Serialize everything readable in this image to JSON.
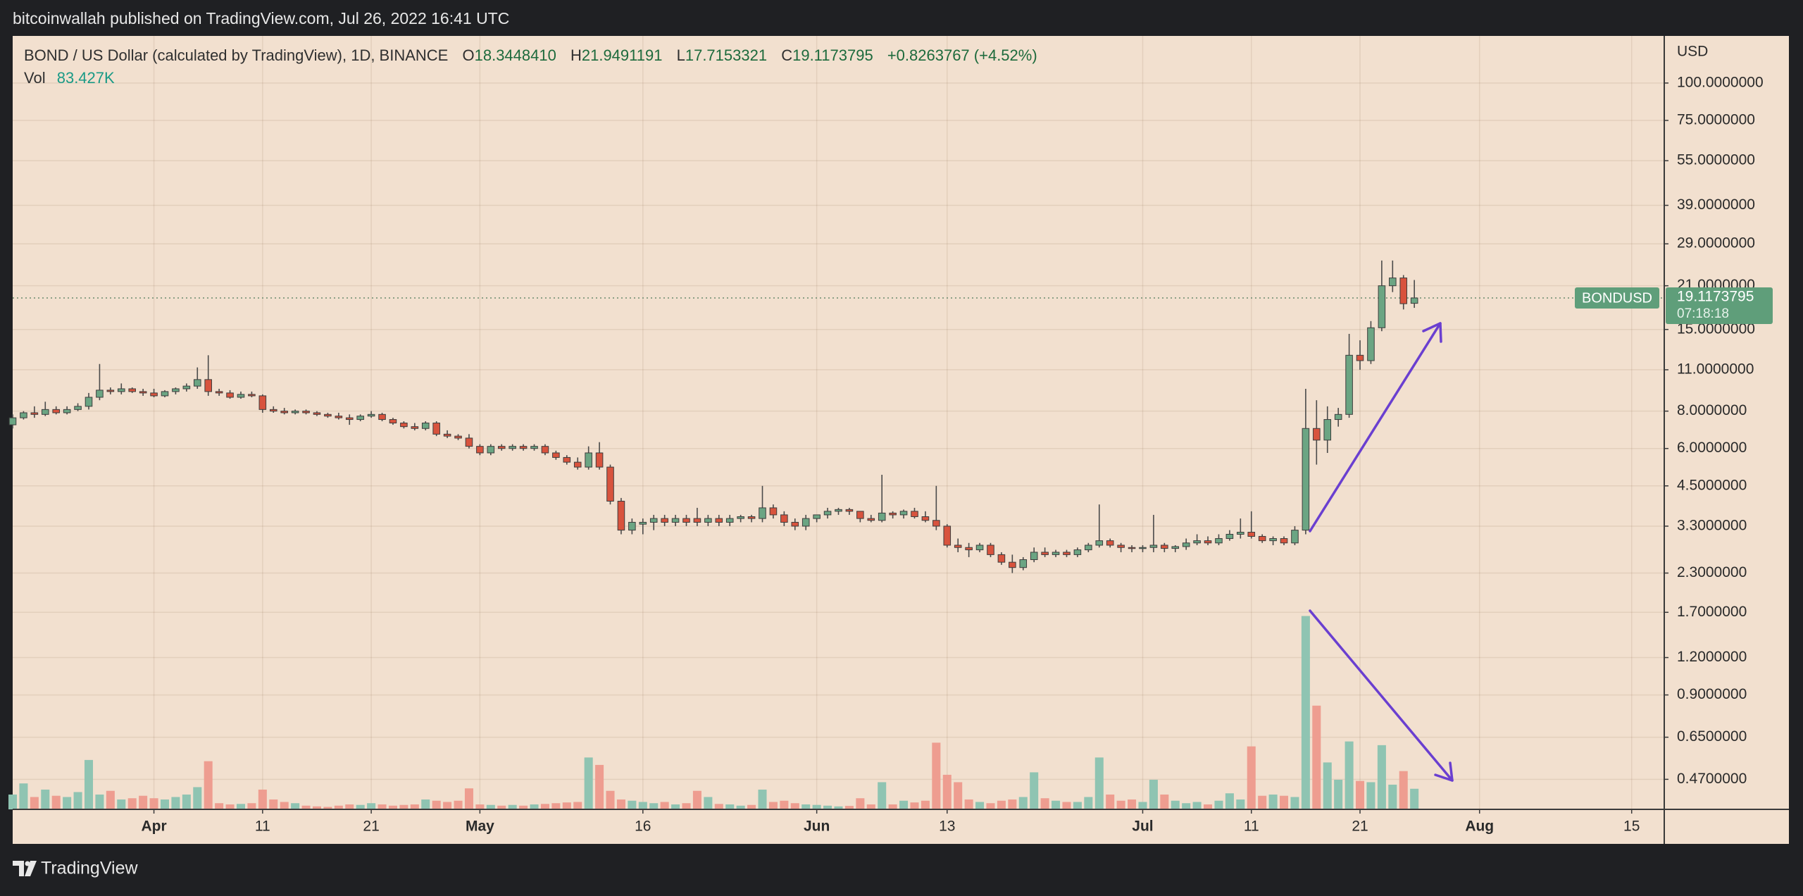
{
  "header": {
    "publisher": "bitcoinwallah published on TradingView.com, Jul 26, 2022 16:41 UTC"
  },
  "footer": {
    "brand": "TradingView"
  },
  "chart_data": {
    "type": "candlestick",
    "title": "BOND / US Dollar (calculated by TradingView), 1D, BINANCE",
    "legend": [
      {
        "label": "O",
        "value": "18.3448410"
      },
      {
        "label": "H",
        "value": "21.9491191"
      },
      {
        "label": "L",
        "value": "17.7153321"
      },
      {
        "label": "C",
        "value": "19.1173795"
      }
    ],
    "change": "+0.8263767 (+4.52%)",
    "volume_legend": {
      "label": "Vol",
      "value": "83.427K"
    },
    "y_axis_unit": "USD",
    "last_price": {
      "symbol": "BONDUSD",
      "value": 19.1173795,
      "countdown": "07:18:18"
    },
    "up_color": "#6ba583",
    "down_color": "#d8533d",
    "volume_up_color": "#8fc4b2",
    "volume_down_color": "#ee9d90",
    "log_scale": true,
    "grid": true,
    "xlim": [
      "2022-03-19",
      "2022-08-18"
    ],
    "xticks": [
      {
        "value": "2022-04-01",
        "label": "Apr"
      },
      {
        "value": "2022-04-11",
        "label": "11"
      },
      {
        "value": "2022-04-21",
        "label": "21"
      },
      {
        "value": "2022-05-01",
        "label": "May"
      },
      {
        "value": "2022-05-16",
        "label": "16"
      },
      {
        "value": "2022-06-01",
        "label": "Jun"
      },
      {
        "value": "2022-06-13",
        "label": "13"
      },
      {
        "value": "2022-07-01",
        "label": "Jul"
      },
      {
        "value": "2022-07-11",
        "label": "11"
      },
      {
        "value": "2022-07-21",
        "label": "21"
      },
      {
        "value": "2022-08-01",
        "label": "Aug"
      },
      {
        "value": "2022-08-15",
        "label": "15"
      }
    ],
    "ylim": [
      0.373,
      143.7
    ],
    "yticks": [
      {
        "value": 100,
        "label": "100.0000000"
      },
      {
        "value": 75,
        "label": "75.0000000"
      },
      {
        "value": 55,
        "label": "55.0000000"
      },
      {
        "value": 39,
        "label": "39.0000000"
      },
      {
        "value": 29,
        "label": "29.0000000"
      },
      {
        "value": 21,
        "label": "21.0000000"
      },
      {
        "value": 15,
        "label": "15.0000000"
      },
      {
        "value": 11,
        "label": "11.0000000"
      },
      {
        "value": 8,
        "label": "8.0000000"
      },
      {
        "value": 6,
        "label": "6.0000000"
      },
      {
        "value": 4.5,
        "label": "4.5000000"
      },
      {
        "value": 3.3,
        "label": "3.3000000"
      },
      {
        "value": 2.3,
        "label": "2.3000000"
      },
      {
        "value": 1.7,
        "label": "1.7000000"
      },
      {
        "value": 1.2,
        "label": "1.2000000"
      },
      {
        "value": 0.9,
        "label": "0.9000000"
      },
      {
        "value": 0.65,
        "label": "0.6500000"
      },
      {
        "value": 0.47,
        "label": "0.4700000"
      }
    ],
    "x": [
      "2022-03-19",
      "2022-03-20",
      "2022-03-21",
      "2022-03-22",
      "2022-03-23",
      "2022-03-24",
      "2022-03-25",
      "2022-03-26",
      "2022-03-27",
      "2022-03-28",
      "2022-03-29",
      "2022-03-30",
      "2022-03-31",
      "2022-04-01",
      "2022-04-02",
      "2022-04-03",
      "2022-04-04",
      "2022-04-05",
      "2022-04-06",
      "2022-04-07",
      "2022-04-08",
      "2022-04-09",
      "2022-04-10",
      "2022-04-11",
      "2022-04-12",
      "2022-04-13",
      "2022-04-14",
      "2022-04-15",
      "2022-04-16",
      "2022-04-17",
      "2022-04-18",
      "2022-04-19",
      "2022-04-20",
      "2022-04-21",
      "2022-04-22",
      "2022-04-23",
      "2022-04-24",
      "2022-04-25",
      "2022-04-26",
      "2022-04-27",
      "2022-04-28",
      "2022-04-29",
      "2022-04-30",
      "2022-05-01",
      "2022-05-02",
      "2022-05-03",
      "2022-05-04",
      "2022-05-05",
      "2022-05-06",
      "2022-05-07",
      "2022-05-08",
      "2022-05-09",
      "2022-05-10",
      "2022-05-11",
      "2022-05-12",
      "2022-05-13",
      "2022-05-14",
      "2022-05-15",
      "2022-05-16",
      "2022-05-17",
      "2022-05-18",
      "2022-05-19",
      "2022-05-20",
      "2022-05-21",
      "2022-05-22",
      "2022-05-23",
      "2022-05-24",
      "2022-05-25",
      "2022-05-26",
      "2022-05-27",
      "2022-05-28",
      "2022-05-29",
      "2022-05-30",
      "2022-05-31",
      "2022-06-01",
      "2022-06-02",
      "2022-06-03",
      "2022-06-04",
      "2022-06-05",
      "2022-06-06",
      "2022-06-07",
      "2022-06-08",
      "2022-06-09",
      "2022-06-10",
      "2022-06-11",
      "2022-06-12",
      "2022-06-13",
      "2022-06-14",
      "2022-06-15",
      "2022-06-16",
      "2022-06-17",
      "2022-06-18",
      "2022-06-19",
      "2022-06-20",
      "2022-06-21",
      "2022-06-22",
      "2022-06-23",
      "2022-06-24",
      "2022-06-25",
      "2022-06-26",
      "2022-06-27",
      "2022-06-28",
      "2022-06-29",
      "2022-06-30",
      "2022-07-01",
      "2022-07-02",
      "2022-07-03",
      "2022-07-04",
      "2022-07-05",
      "2022-07-06",
      "2022-07-07",
      "2022-07-08",
      "2022-07-09",
      "2022-07-10",
      "2022-07-11",
      "2022-07-12",
      "2022-07-13",
      "2022-07-14",
      "2022-07-15",
      "2022-07-16",
      "2022-07-17",
      "2022-07-18",
      "2022-07-19",
      "2022-07-20",
      "2022-07-21",
      "2022-07-22",
      "2022-07-23",
      "2022-07-24",
      "2022-07-25",
      "2022-07-26"
    ],
    "open": [
      7.2,
      7.6,
      7.9,
      7.8,
      8.1,
      7.9,
      8.1,
      8.3,
      8.9,
      9.4,
      9.3,
      9.5,
      9.3,
      9.2,
      9.0,
      9.3,
      9.5,
      9.7,
      10.2,
      9.3,
      9.2,
      8.9,
      9.1,
      9.0,
      8.1,
      8.0,
      7.9,
      8.0,
      7.9,
      7.8,
      7.7,
      7.6,
      7.5,
      7.7,
      7.8,
      7.5,
      7.3,
      7.1,
      7.0,
      7.3,
      6.7,
      6.6,
      6.5,
      6.1,
      5.8,
      6.1,
      6.0,
      6.1,
      6.0,
      6.1,
      5.8,
      5.6,
      5.4,
      5.2,
      5.8,
      5.2,
      4.0,
      3.2,
      3.35,
      3.4,
      3.5,
      3.4,
      3.5,
      3.5,
      3.4,
      3.5,
      3.4,
      3.5,
      3.55,
      3.5,
      3.8,
      3.6,
      3.4,
      3.3,
      3.5,
      3.6,
      3.7,
      3.75,
      3.7,
      3.5,
      3.45,
      3.65,
      3.6,
      3.7,
      3.55,
      3.45,
      3.3,
      2.85,
      2.8,
      2.75,
      2.85,
      2.65,
      2.5,
      2.4,
      2.55,
      2.7,
      2.65,
      2.7,
      2.65,
      2.75,
      2.85,
      2.95,
      2.85,
      2.8,
      2.78,
      2.8,
      2.85,
      2.78,
      2.82,
      2.9,
      2.95,
      2.9,
      3.0,
      3.1,
      3.15,
      3.05,
      2.95,
      3.0,
      2.9,
      3.2,
      7.0,
      6.4,
      7.5,
      7.8,
      12.3,
      11.8,
      15.2,
      21.0,
      22.3,
      18.344841
    ],
    "high": [
      7.8,
      8.0,
      8.3,
      8.6,
      8.3,
      8.3,
      8.5,
      9.2,
      11.5,
      9.6,
      9.9,
      9.6,
      9.5,
      9.5,
      9.4,
      9.6,
      9.9,
      11.2,
      12.3,
      9.5,
      9.4,
      9.3,
      9.3,
      9.1,
      8.3,
      8.2,
      8.1,
      8.1,
      8.0,
      7.9,
      7.9,
      7.8,
      7.8,
      8.0,
      7.9,
      7.6,
      7.4,
      7.3,
      7.4,
      7.4,
      6.9,
      6.7,
      6.7,
      6.2,
      6.2,
      6.2,
      6.2,
      6.2,
      6.2,
      6.2,
      5.9,
      5.7,
      5.6,
      6.1,
      6.3,
      5.3,
      4.1,
      3.5,
      3.5,
      3.6,
      3.6,
      3.6,
      3.6,
      3.8,
      3.6,
      3.6,
      3.6,
      3.6,
      3.6,
      4.5,
      3.9,
      3.7,
      3.5,
      3.6,
      3.6,
      3.8,
      3.8,
      3.8,
      3.7,
      3.6,
      4.9,
      3.7,
      3.75,
      3.8,
      3.7,
      4.5,
      3.35,
      3.0,
      2.9,
      2.9,
      2.9,
      2.7,
      2.65,
      2.6,
      2.8,
      2.8,
      2.75,
      2.75,
      2.8,
      2.9,
      3.9,
      3.0,
      2.9,
      2.85,
      2.85,
      3.6,
      2.9,
      2.85,
      3.0,
      3.1,
      3.05,
      3.1,
      3.2,
      3.5,
      3.7,
      3.1,
      3.05,
      3.05,
      3.3,
      9.5,
      8.7,
      8.3,
      8.2,
      14.5,
      13.8,
      16.0,
      25.5,
      25.5,
      22.8,
      21.9491191
    ],
    "low": [
      7.0,
      7.5,
      7.6,
      7.7,
      7.8,
      7.8,
      8.0,
      8.1,
      8.7,
      9.1,
      9.1,
      9.2,
      9.0,
      8.9,
      8.9,
      9.1,
      9.3,
      9.5,
      9.0,
      9.0,
      8.8,
      8.8,
      8.9,
      7.9,
      7.9,
      7.8,
      7.8,
      7.8,
      7.7,
      7.6,
      7.5,
      7.2,
      7.4,
      7.6,
      7.4,
      7.2,
      7.0,
      6.9,
      6.9,
      6.6,
      6.5,
      6.4,
      6.0,
      5.7,
      5.7,
      5.9,
      5.9,
      5.9,
      5.9,
      5.7,
      5.5,
      5.3,
      5.1,
      5.1,
      5.1,
      3.9,
      3.1,
      3.1,
      3.1,
      3.2,
      3.3,
      3.3,
      3.3,
      3.3,
      3.3,
      3.3,
      3.3,
      3.4,
      3.4,
      3.4,
      3.5,
      3.3,
      3.2,
      3.2,
      3.4,
      3.5,
      3.6,
      3.6,
      3.4,
      3.4,
      3.4,
      3.5,
      3.5,
      3.5,
      3.4,
      3.2,
      2.8,
      2.7,
      2.6,
      2.7,
      2.6,
      2.45,
      2.3,
      2.35,
      2.5,
      2.6,
      2.6,
      2.6,
      2.6,
      2.7,
      2.8,
      2.8,
      2.7,
      2.7,
      2.7,
      2.7,
      2.7,
      2.7,
      2.75,
      2.85,
      2.85,
      2.85,
      2.95,
      3.0,
      3.0,
      2.9,
      2.85,
      2.85,
      2.85,
      3.1,
      5.3,
      5.8,
      7.1,
      7.6,
      11.0,
      11.5,
      14.8,
      20.0,
      17.5,
      17.7153321
    ],
    "close": [
      7.6,
      7.9,
      7.8,
      8.1,
      7.9,
      8.1,
      8.3,
      8.9,
      9.4,
      9.3,
      9.5,
      9.3,
      9.2,
      9.0,
      9.3,
      9.5,
      9.7,
      10.2,
      9.3,
      9.2,
      8.9,
      9.1,
      9.0,
      8.1,
      8.0,
      7.9,
      8.0,
      7.9,
      7.8,
      7.7,
      7.6,
      7.5,
      7.7,
      7.8,
      7.5,
      7.3,
      7.1,
      7.0,
      7.3,
      6.7,
      6.6,
      6.5,
      6.1,
      5.8,
      6.1,
      6.0,
      6.1,
      6.0,
      6.1,
      5.8,
      5.6,
      5.4,
      5.2,
      5.8,
      5.2,
      4.0,
      3.2,
      3.4,
      3.4,
      3.5,
      3.4,
      3.5,
      3.4,
      3.4,
      3.5,
      3.4,
      3.5,
      3.55,
      3.5,
      3.8,
      3.6,
      3.4,
      3.3,
      3.5,
      3.6,
      3.7,
      3.75,
      3.7,
      3.5,
      3.45,
      3.65,
      3.6,
      3.7,
      3.55,
      3.45,
      3.3,
      2.85,
      2.8,
      2.75,
      2.85,
      2.65,
      2.5,
      2.4,
      2.55,
      2.7,
      2.65,
      2.7,
      2.65,
      2.75,
      2.85,
      2.95,
      2.85,
      2.8,
      2.78,
      2.8,
      2.85,
      2.78,
      2.82,
      2.9,
      2.95,
      2.9,
      3.0,
      3.1,
      3.15,
      3.05,
      2.95,
      3.0,
      2.9,
      3.2,
      7.0,
      6.4,
      7.5,
      7.8,
      12.3,
      11.8,
      15.2,
      21.0,
      22.3,
      18.2910028,
      19.1173795
    ],
    "volume": [
      60000,
      105000,
      50000,
      80000,
      55000,
      50000,
      70000,
      200000,
      60000,
      75000,
      40000,
      45000,
      55000,
      45000,
      40000,
      50000,
      60000,
      90000,
      195000,
      25000,
      20000,
      22000,
      25000,
      80000,
      40000,
      30000,
      25000,
      15000,
      12000,
      10000,
      15000,
      20000,
      18000,
      25000,
      20000,
      15000,
      18000,
      20000,
      40000,
      35000,
      30000,
      35000,
      85000,
      20000,
      18000,
      15000,
      18000,
      15000,
      20000,
      22000,
      25000,
      28000,
      30000,
      210000,
      180000,
      75000,
      40000,
      35000,
      30000,
      25000,
      30000,
      20000,
      25000,
      75000,
      50000,
      22000,
      20000,
      15000,
      18000,
      80000,
      30000,
      35000,
      25000,
      20000,
      18000,
      15000,
      12000,
      14000,
      45000,
      20000,
      110000,
      20000,
      35000,
      28000,
      35000,
      270000,
      140000,
      110000,
      40000,
      30000,
      25000,
      35000,
      40000,
      50000,
      150000,
      45000,
      35000,
      30000,
      30000,
      50000,
      210000,
      60000,
      35000,
      40000,
      30000,
      120000,
      60000,
      35000,
      25000,
      30000,
      20000,
      35000,
      65000,
      40000,
      255000,
      55000,
      60000,
      55000,
      50000,
      783000,
      420000,
      190000,
      120000,
      275000,
      115000,
      110000,
      260000,
      100000,
      155000,
      83427
    ]
  }
}
